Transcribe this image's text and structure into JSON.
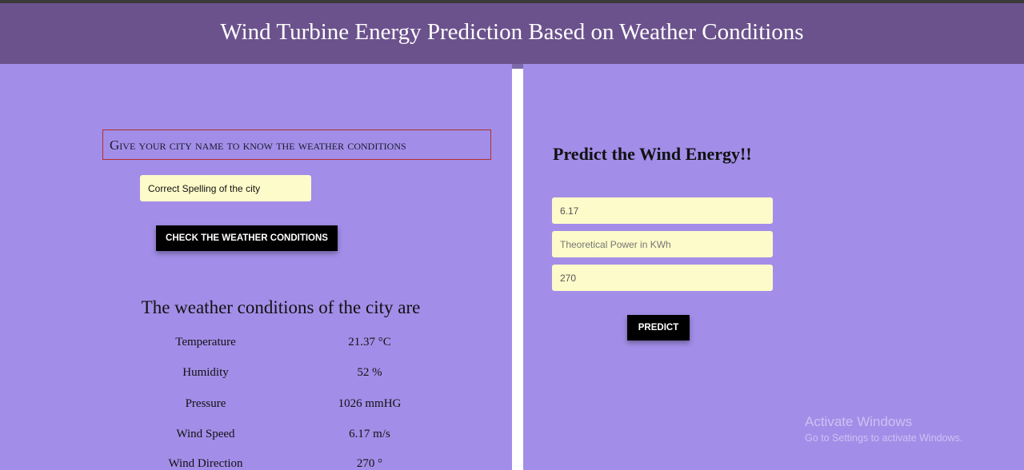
{
  "header": {
    "title": "Wind Turbine Energy Prediction Based on Weather Conditions"
  },
  "weather_lookup": {
    "heading": "Give your city name to know the weather conditions",
    "city_placeholder": "Correct Spelling of the city",
    "check_button_label": "CHECK THE WEATHER CONDITIONS"
  },
  "conditions": {
    "title": "The weather conditions of the city are",
    "rows": [
      {
        "label": "Temperature",
        "value": "21.37 °C"
      },
      {
        "label": "Humidity",
        "value": "52 %"
      },
      {
        "label": "Pressure",
        "value": "1026 mmHG"
      },
      {
        "label": "Wind Speed",
        "value": "6.17 m/s"
      },
      {
        "label": "Wind Direction",
        "value": "270 °"
      }
    ]
  },
  "prediction": {
    "heading": "Predict the Wind Energy!!",
    "wind_speed_value": "6.17",
    "theoretical_power_placeholder": "Theoretical Power in KWh",
    "wind_direction_value": "270",
    "predict_button_label": "PREDICT"
  },
  "watermark": {
    "title": "Activate Windows",
    "subtitle": "Go to Settings to activate Windows."
  },
  "colors": {
    "background": "#a28ee8",
    "header": "#6b528c",
    "input_background": "#fdfbc9",
    "button": "#000000"
  }
}
